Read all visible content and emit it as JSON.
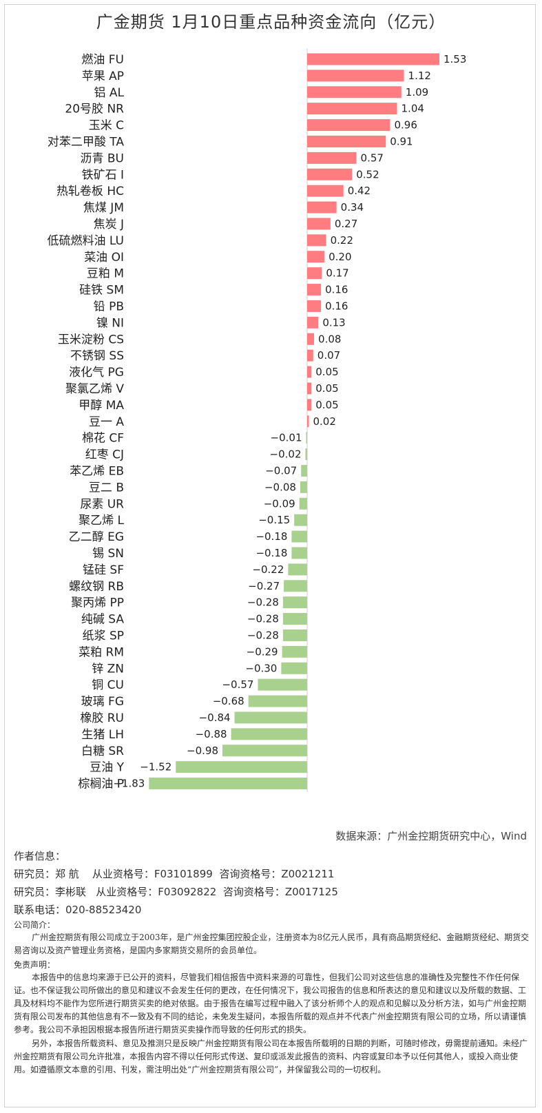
{
  "chart_data": {
    "type": "bar",
    "orientation": "horizontal",
    "title": "广金期货 1月10日重点品种资金流向（亿元）",
    "colors": {
      "positive": "#ff7c80",
      "negative": "#a9d18e"
    },
    "categories": [
      "燃油 FU",
      "苹果 AP",
      "铝 AL",
      "20号胶 NR",
      "玉米 C",
      "对苯二甲酸 TA",
      "沥青 BU",
      "铁矿石 I",
      "热轧卷板 HC",
      "焦煤 JM",
      "焦炭 J",
      "低硫燃料油 LU",
      "菜油 OI",
      "豆粕 M",
      "硅铁 SM",
      "铅 PB",
      "镍 NI",
      "玉米淀粉 CS",
      "不锈钢 SS",
      "液化气 PG",
      "聚氯乙烯 V",
      "甲醇 MA",
      "豆一 A",
      "棉花 CF",
      "红枣 CJ",
      "苯乙烯 EB",
      "豆二 B",
      "尿素 UR",
      "聚乙烯 L",
      "乙二醇 EG",
      "锡 SN",
      "锰硅 SF",
      "螺纹钢 RB",
      "聚丙烯 PP",
      "纯碱 SA",
      "纸浆 SP",
      "菜粕 RM",
      "锌 ZN",
      "铜 CU",
      "玻璃 FG",
      "橡胶 RU",
      "生猪 LH",
      "白糖 SR",
      "豆油 Y",
      "棕榈油 P"
    ],
    "values": [
      1.53,
      1.12,
      1.09,
      1.04,
      0.96,
      0.91,
      0.57,
      0.52,
      0.42,
      0.34,
      0.27,
      0.22,
      0.2,
      0.17,
      0.16,
      0.16,
      0.13,
      0.08,
      0.07,
      0.05,
      0.05,
      0.05,
      0.02,
      -0.01,
      -0.02,
      -0.07,
      -0.08,
      -0.09,
      -0.15,
      -0.18,
      -0.18,
      -0.22,
      -0.27,
      -0.28,
      -0.28,
      -0.28,
      -0.29,
      -0.3,
      -0.57,
      -0.68,
      -0.84,
      -0.88,
      -0.98,
      -1.52,
      -1.83
    ],
    "value_labels": [
      "1.53",
      "1.12",
      "1.09",
      "1.04",
      "0.96",
      "0.91",
      "0.57",
      "0.52",
      "0.42",
      "0.34",
      "0.27",
      "0.22",
      "0.20",
      "0.17",
      "0.16",
      "0.16",
      "0.13",
      "0.08",
      "0.07",
      "0.05",
      "0.05",
      "0.05",
      "0.02",
      "−0.01",
      "−0.02",
      "−0.07",
      "−0.08",
      "−0.09",
      "−0.15",
      "−0.18",
      "−0.18",
      "−0.22",
      "−0.27",
      "−0.28",
      "−0.28",
      "−0.28",
      "−0.29",
      "−0.30",
      "−0.57",
      "−0.68",
      "−0.84",
      "−0.88",
      "−0.98",
      "−1.52",
      "−1.83"
    ],
    "xlim": [
      -1.83,
      1.53
    ]
  },
  "source": "数据来源：广州金控期货研究中心，Wind",
  "author": {
    "header": "作者信息：",
    "researcher1": "研究员：郑 航    从业资格号：F03101899  咨询资格号：Z0021211",
    "researcher2": "研究员：李彬联   从业资格号：F03092822  咨询资格号：Z0017125",
    "phone": "联系电话：020-88523420"
  },
  "company": {
    "header": "公司简介：",
    "text": "广州金控期货有限公司成立于2003年，是广州金控集团控股企业，注册资本为8亿元人民币，具有商品期货经纪、金融期货经纪、期货交易咨询以及资产管理业务资格，是国内多家期货交易所的会员单位。"
  },
  "disclaimer": {
    "header": "免责声明：",
    "p1": "本报告中的信息均来源于已公开的资料，尽管我们相信报告中资料来源的可靠性，但我们公司对这些信息的准确性及完整性不作任何保证。也不保证我公司所做出的意见和建议不会发生任何的更改，在任何情况下，我公司报告的信息和所表达的意见和建议以及所载的数据、工具及材料均不能作为您所进行期货买卖的绝对依据。由于报告在编写过程中融入了该分析师个人的观点和见解以及分析方法，如与广州金控期货有限公司发布的其他信息有不一致及有不同的结论，未免发生疑问，本报告所载的观点并不代表广州金控期货有限公司的立场，所以请谨慎参考。我公司不承担因根据本报告所进行期货买卖操作而导致的任何形式的损失。",
    "p2": "另外，本报告所载资料、意见及推测只是反映广州金控期货有限公司在本报告所载明的日期的判断，可随时修改，毋需提前通知。未经广州金控期货有限公司允许批准，本报告内容不得以任何形式传送、复印或派发此报告的资料、内容或复印本予以任何其他人，或投入商业使用。如遵循原文本意的引用、刊发，需注明出处“广州金控期货有限公司”，并保留我公司的一切权利。"
  }
}
